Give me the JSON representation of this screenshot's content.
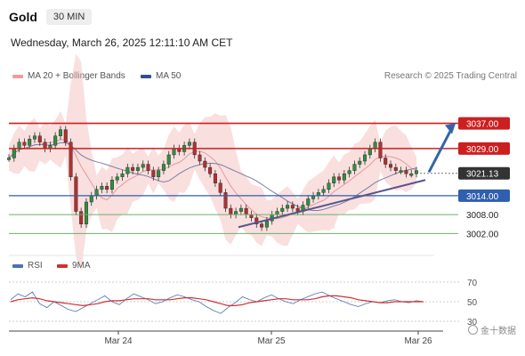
{
  "header": {
    "symbol": "Gold",
    "timeframe": "30 MIN"
  },
  "timestamp": "Wednesday, March 26, 2025 12:11:10 AM CET",
  "legend": {
    "ma20_bb": "MA 20 + Bollinger Bands",
    "ma50": "MA 50",
    "rsi": "RSI",
    "ma9": "9MA",
    "credit": "Research © 2025 Trading Central"
  },
  "watermark": "金十数据",
  "colors": {
    "resistance": "#cc1f1f",
    "support": "#2f5fae",
    "minor_support": "#6bb06b",
    "current": "#333333",
    "bollinger": "#f4b8b8",
    "ma20": "#e39b9b",
    "ma50": "#7b7fa8",
    "trendline": "#55568c",
    "arrow": "#3264ad",
    "rsi_line": "#4b71b0",
    "rsi_ma": "#d32f2f"
  },
  "chart_data": [
    {
      "type": "line",
      "title": "Gold 30 MIN",
      "x_ticks": [
        "Mar 24",
        "Mar 25",
        "Mar 26"
      ],
      "price_levels": [
        {
          "label": "3037.00",
          "value": 3037.0,
          "kind": "resistance"
        },
        {
          "label": "3029.00",
          "value": 3029.0,
          "kind": "resistance"
        },
        {
          "label": "3021.13",
          "value": 3021.13,
          "kind": "current"
        },
        {
          "label": "3014.00",
          "value": 3014.0,
          "kind": "support"
        },
        {
          "label": "3008.00",
          "value": 3008.0,
          "kind": "minor_support"
        },
        {
          "label": "3002.00",
          "value": 3002.0,
          "kind": "minor_support"
        }
      ],
      "ylim": [
        2997,
        3040
      ],
      "series": [
        {
          "name": "Gold",
          "values": [
            3026,
            3029,
            3031,
            3030,
            3032,
            3033,
            3031,
            3029,
            3030,
            3033,
            3035,
            3031,
            3020,
            3009,
            3005,
            3012,
            3014,
            3016,
            3017,
            3016,
            3019,
            3020,
            3021,
            3023,
            3022,
            3023,
            3024,
            3022,
            3020,
            3022,
            3024,
            3027,
            3029,
            3028,
            3030,
            3031,
            3027,
            3025,
            3023,
            3021,
            3018,
            3015,
            3010,
            3008,
            3009,
            3010,
            3008,
            3007,
            3005,
            3004,
            3006,
            3008,
            3009,
            3010,
            3011,
            3010,
            3009,
            3011,
            3013,
            3014,
            3015,
            3016,
            3018,
            3020,
            3019,
            3021,
            3022,
            3024,
            3025,
            3027,
            3029,
            3031,
            3026,
            3024,
            3023,
            3022,
            3022,
            3021,
            3021,
            3022
          ]
        }
      ],
      "trendline": {
        "from": 3004,
        "to": 3019
      },
      "projection_target": 3037.0
    },
    {
      "type": "line",
      "yticks": [
        70,
        50,
        30
      ],
      "ylim": [
        20,
        80
      ],
      "series": [
        {
          "name": "RSI",
          "values": [
            52,
            58,
            55,
            60,
            48,
            44,
            50,
            46,
            42,
            40,
            44,
            48,
            52,
            56,
            50,
            47,
            53,
            58,
            55,
            52,
            48,
            50,
            54,
            57,
            55,
            52,
            50,
            45,
            41,
            38,
            44,
            49,
            55,
            52,
            50,
            54,
            57,
            53,
            50,
            48,
            52,
            55,
            58,
            60,
            56,
            53,
            50,
            47,
            45,
            48,
            50,
            49,
            51,
            52,
            50,
            49,
            51,
            50
          ]
        },
        {
          "name": "9MA",
          "values": [
            50,
            52,
            53,
            54,
            53,
            51,
            50,
            49,
            48,
            47,
            46,
            47,
            48,
            50,
            51,
            51,
            52,
            53,
            53,
            53,
            52,
            52,
            52,
            53,
            54,
            54,
            53,
            52,
            50,
            48,
            46,
            46,
            47,
            49,
            50,
            51,
            52,
            53,
            53,
            52,
            52,
            52,
            53,
            55,
            56,
            56,
            55,
            54,
            52,
            51,
            50,
            49,
            49,
            50,
            50,
            50,
            50,
            50
          ]
        }
      ]
    }
  ]
}
